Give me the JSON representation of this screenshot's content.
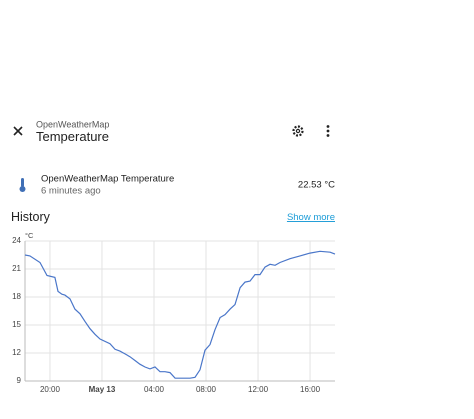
{
  "dialog": {
    "subtitle": "OpenWeatherMap",
    "title": "Temperature"
  },
  "entity": {
    "name": "OpenWeatherMap Temperature",
    "last_changed": "6 minutes ago",
    "state": "22.53 °C"
  },
  "history": {
    "title": "History",
    "link": "Show more"
  },
  "chart_data": {
    "type": "line",
    "y_label": "°C",
    "color": "#4a76c9",
    "grid": true,
    "x": [
      18.08,
      18.46,
      19.23,
      19.77,
      20.38,
      20.62,
      20.92,
      21.15,
      21.54,
      21.92,
      22.31,
      22.69,
      23.08,
      23.46,
      23.85,
      24.62,
      25.0,
      25.38,
      25.77,
      26.15,
      26.54,
      26.92,
      27.31,
      27.69,
      28.08,
      28.46,
      28.85,
      29.23,
      29.62,
      30.0,
      30.77,
      31.15,
      31.54,
      31.92,
      32.31,
      32.69,
      33.08,
      33.46,
      33.85,
      34.23,
      34.62,
      35.0,
      35.38,
      35.77,
      36.15,
      36.54,
      36.92,
      37.31,
      37.69,
      38.46,
      39.23,
      40.0,
      40.77,
      41.54,
      41.92
    ],
    "values": [
      22.5,
      22.4,
      21.7,
      20.3,
      20.1,
      18.6,
      18.3,
      18.2,
      17.8,
      16.7,
      16.2,
      15.4,
      14.6,
      14.0,
      13.5,
      13.0,
      12.4,
      12.2,
      11.9,
      11.6,
      11.2,
      10.8,
      10.5,
      10.3,
      10.5,
      10.0,
      10.0,
      9.9,
      9.3,
      9.3,
      9.3,
      9.4,
      10.2,
      12.3,
      12.9,
      14.5,
      15.8,
      16.1,
      16.7,
      17.2,
      19.0,
      19.6,
      19.7,
      20.4,
      20.4,
      21.2,
      21.5,
      21.4,
      21.7,
      22.1,
      22.4,
      22.7,
      22.9,
      22.8,
      22.6
    ],
    "xlim": [
      18.08,
      41.92
    ],
    "xticks": [
      {
        "value": 20,
        "label": "20:00"
      },
      {
        "value": 24,
        "label": "May 13"
      },
      {
        "value": 28,
        "label": "04:00"
      },
      {
        "value": 32,
        "label": "08:00"
      },
      {
        "value": 36,
        "label": "12:00"
      },
      {
        "value": 40,
        "label": "16:00"
      }
    ],
    "ylim": [
      9,
      24
    ],
    "yticks": [
      9,
      12,
      15,
      18,
      21,
      24
    ]
  }
}
